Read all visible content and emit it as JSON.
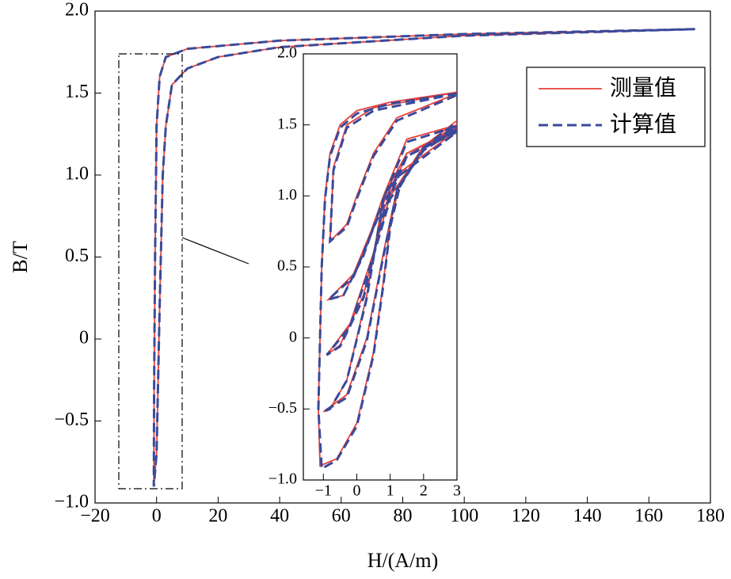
{
  "chart_data": [
    {
      "type": "line",
      "xlabel": "H/(A/m)",
      "ylabel": "B/T",
      "xlim": [
        -20,
        180
      ],
      "ylim": [
        -1.0,
        2.0
      ],
      "xticks": [
        {
          "value": -20,
          "label": "−20"
        },
        0,
        20,
        40,
        60,
        80,
        100,
        120,
        140,
        160,
        180
      ],
      "yticks": [
        {
          "value": -1.0,
          "label": "−1.0"
        },
        {
          "value": -0.5,
          "label": "−0.5"
        },
        0,
        {
          "value": 0.5,
          "label": "0.5"
        },
        {
          "value": 1.0,
          "label": "1.0"
        },
        {
          "value": 1.5,
          "label": "1.5"
        },
        {
          "value": 2.0,
          "label": "2.0"
        }
      ],
      "legend": "upper right",
      "series": [
        {
          "name": "测量值",
          "color": "#e8403a",
          "style": "solid",
          "x": [
            175,
            100,
            40,
            10,
            3,
            1,
            0,
            -0.5,
            -0.8,
            -0.9,
            0,
            1,
            2,
            3,
            5,
            10,
            20,
            40,
            100,
            175
          ],
          "values": [
            1.89,
            1.86,
            1.82,
            1.77,
            1.72,
            1.6,
            1.3,
            0.5,
            -0.3,
            -0.9,
            -0.7,
            0.2,
            1.0,
            1.3,
            1.55,
            1.65,
            1.72,
            1.78,
            1.85,
            1.89
          ]
        },
        {
          "name": "计算值",
          "color": "#3b4a9a",
          "style": "dashed",
          "x": [
            175,
            100,
            40,
            10,
            3,
            1,
            0,
            -0.5,
            -0.8,
            -0.9,
            0,
            1,
            2,
            3,
            5,
            10,
            20,
            40,
            100,
            175
          ],
          "values": [
            1.89,
            1.86,
            1.82,
            1.77,
            1.72,
            1.6,
            1.3,
            0.5,
            -0.3,
            -0.9,
            -0.7,
            0.2,
            1.0,
            1.3,
            1.55,
            1.65,
            1.72,
            1.78,
            1.85,
            1.89
          ]
        }
      ]
    },
    {
      "type": "line",
      "xlim": [
        -1.6,
        3
      ],
      "ylim": [
        -1.0,
        2.0
      ],
      "xticks": [
        {
          "value": -1,
          "label": "−1"
        },
        0,
        1,
        2,
        3
      ],
      "yticks": [
        {
          "value": -1.0,
          "label": "−1.0"
        },
        {
          "value": -0.5,
          "label": "−0.5"
        },
        0,
        {
          "value": 0.5,
          "label": "0.5"
        },
        {
          "value": 1.0,
          "label": "1.0"
        },
        {
          "value": 1.5,
          "label": "1.5"
        },
        {
          "value": 2.0,
          "label": "2.0"
        }
      ],
      "series": [
        {
          "name": "测量值",
          "color": "#e8403a",
          "style": "solid",
          "x": [
            3,
            1,
            0,
            -0.5,
            -0.8,
            -0.95,
            -1.05,
            -1.1,
            -1.15,
            -1.1,
            -0.6,
            0,
            0.5,
            0.8,
            1.0,
            1.3,
            2,
            3,
            null,
            3,
            1.5,
            0.8,
            0.3,
            -0.3,
            -0.8,
            -1.0,
            -0.3,
            0.3,
            0.8,
            1.2,
            2,
            3,
            null,
            3,
            1.5,
            0.8,
            0.2,
            -0.5,
            -0.9,
            -0.2,
            0.5,
            1,
            2,
            3,
            null,
            3,
            1.5,
            0.8,
            0.2,
            -0.4,
            -0.85,
            -0.1,
            0.6,
            1.2,
            3,
            null,
            3,
            0.5,
            -0.3,
            -0.7,
            -0.8,
            -0.3,
            0,
            0.5,
            1.2,
            3
          ],
          "values": [
            1.73,
            1.66,
            1.6,
            1.5,
            1.3,
            1.0,
            0.5,
            0,
            -0.5,
            -0.9,
            -0.85,
            -0.6,
            -0.1,
            0.4,
            0.8,
            1.1,
            1.35,
            1.53,
            null,
            1.5,
            1.4,
            1.0,
            0.3,
            -0.3,
            -0.5,
            -0.52,
            -0.4,
            0,
            0.6,
            1.05,
            1.35,
            1.5,
            null,
            1.48,
            1.3,
            0.9,
            0.3,
            -0.05,
            -0.12,
            0.1,
            0.6,
            1.0,
            1.33,
            1.48,
            null,
            1.46,
            1.3,
            1.0,
            0.6,
            0.3,
            0.27,
            0.45,
            0.85,
            1.15,
            1.46,
            null,
            1.73,
            1.62,
            1.5,
            1.2,
            0.68,
            0.8,
            1.0,
            1.3,
            1.55,
            1.72
          ]
        },
        {
          "name": "计算值",
          "color": "#3b4a9a",
          "style": "dashed",
          "x": [
            3,
            1,
            0,
            -0.5,
            -0.8,
            -0.95,
            -1.05,
            -1.1,
            -1.15,
            -1.05,
            -0.6,
            0,
            0.5,
            0.8,
            1.0,
            1.3,
            2,
            3,
            null,
            3,
            1.5,
            0.8,
            0.3,
            -0.3,
            -0.8,
            -1.0,
            -0.3,
            0.3,
            0.8,
            1.2,
            2,
            3,
            null,
            3,
            1.5,
            0.8,
            0.2,
            -0.5,
            -0.9,
            -0.2,
            0.5,
            1,
            2,
            3,
            null,
            3,
            1.5,
            0.8,
            0.2,
            -0.4,
            -0.85,
            -0.1,
            0.6,
            1.2,
            3,
            null,
            3,
            0.5,
            -0.3,
            -0.7,
            -0.8,
            -0.3,
            0,
            0.5,
            1.2,
            3
          ],
          "values": [
            1.72,
            1.65,
            1.58,
            1.48,
            1.28,
            0.98,
            0.5,
            0,
            -0.5,
            -0.92,
            -0.86,
            -0.62,
            -0.12,
            0.38,
            0.78,
            1.08,
            1.34,
            1.52,
            null,
            1.49,
            1.38,
            0.98,
            0.28,
            -0.3,
            -0.5,
            -0.52,
            -0.42,
            -0.02,
            0.58,
            1.03,
            1.34,
            1.49,
            null,
            1.47,
            1.28,
            0.88,
            0.28,
            -0.06,
            -0.12,
            0.08,
            0.58,
            0.98,
            1.32,
            1.47,
            null,
            1.45,
            1.28,
            0.98,
            0.58,
            0.3,
            0.27,
            0.43,
            0.83,
            1.13,
            1.45,
            null,
            1.72,
            1.6,
            1.48,
            1.18,
            0.68,
            0.78,
            0.98,
            1.28,
            1.53,
            1.71
          ]
        }
      ]
    }
  ]
}
